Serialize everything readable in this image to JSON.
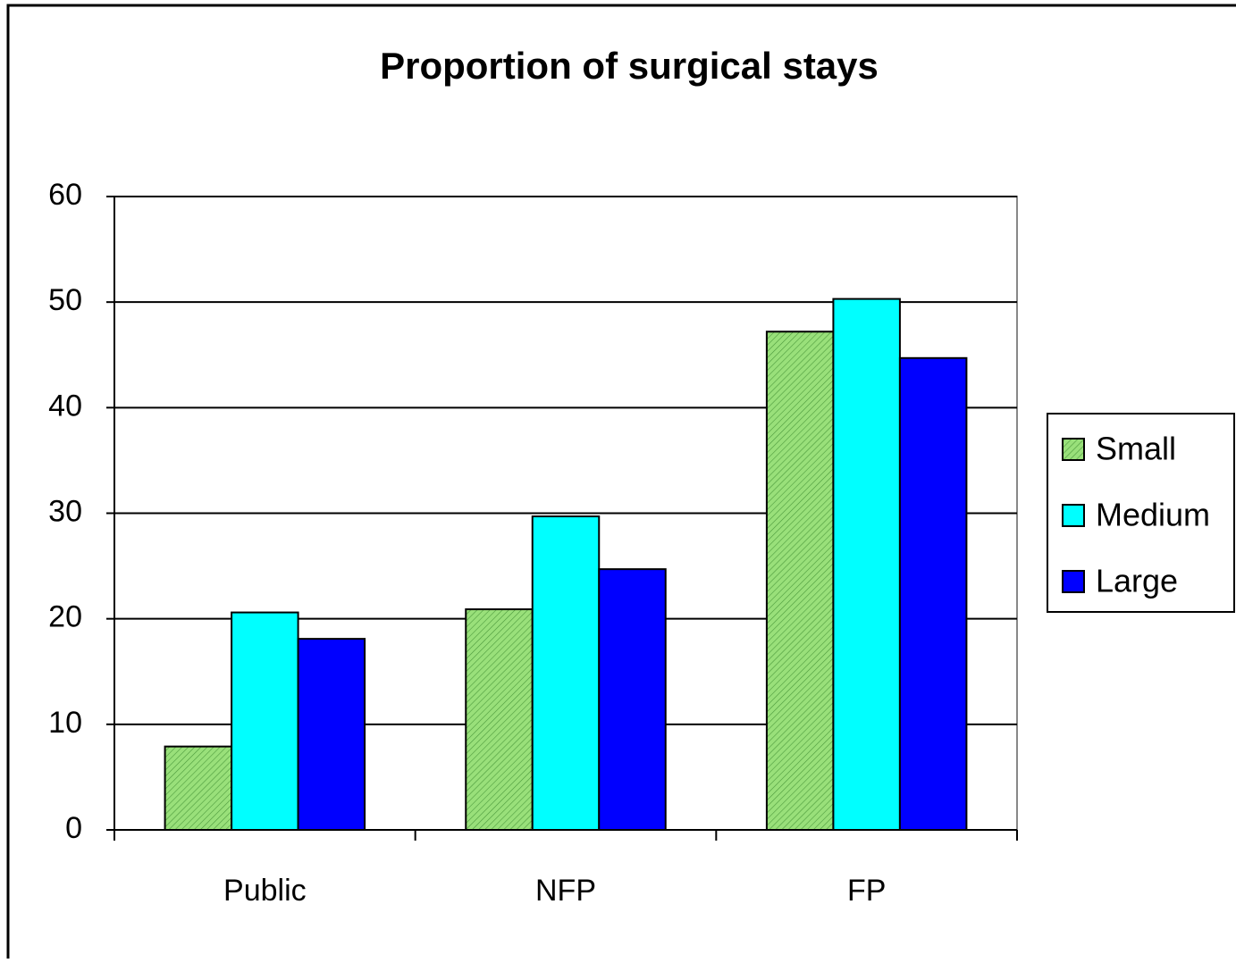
{
  "chart_data": {
    "type": "bar",
    "title": "Proportion of surgical stays",
    "categories": [
      "Public",
      "NFP",
      "FP"
    ],
    "series": [
      {
        "name": "Small",
        "color": "#99e07a",
        "hatch": true,
        "values": [
          7.9,
          20.9,
          47.2
        ]
      },
      {
        "name": "Medium",
        "color": "#00ffff",
        "values": [
          20.6,
          29.7,
          50.3
        ]
      },
      {
        "name": "Large",
        "color": "#0000ff",
        "values": [
          18.1,
          24.7,
          44.7
        ]
      }
    ],
    "ylim": [
      0,
      60
    ],
    "yticks": [
      0,
      10,
      20,
      30,
      40,
      50,
      60
    ],
    "grid": true,
    "legend": "right"
  }
}
